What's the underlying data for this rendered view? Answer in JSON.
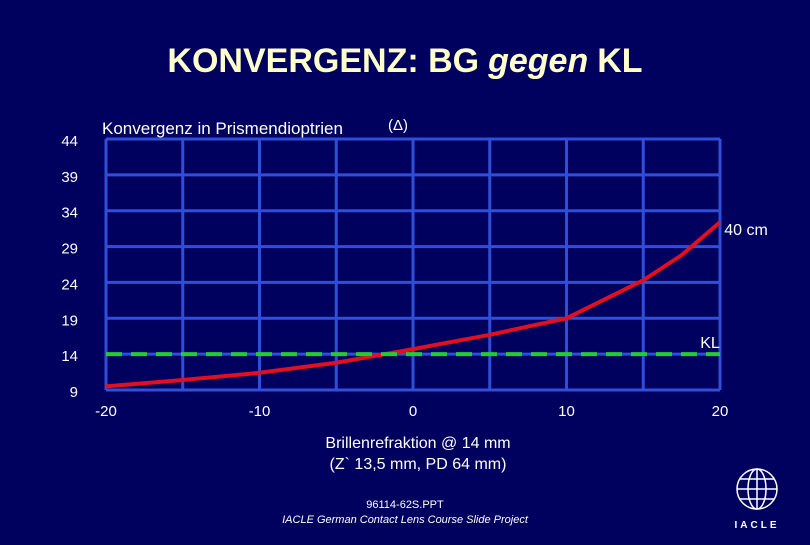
{
  "chart_data": {
    "type": "line",
    "title_start": "KONVERGENZ: BG",
    "title_italic": "gegen",
    "title_end": "KL",
    "ylabel": "Konvergenz in Prismendioptrien",
    "ylabel_unit": "(Δ)",
    "xlabel_line1": "Brillenrefraktion @ 14 mm",
    "xlabel_line2": "(Z` 13,5 mm, PD 64 mm)",
    "xlim": [
      -20,
      20
    ],
    "xticks": [
      -20,
      -10,
      0,
      10,
      20
    ],
    "xminor": [
      -15,
      -5,
      5,
      15
    ],
    "ylim": [
      9,
      44
    ],
    "yticks": [
      9,
      14,
      19,
      24,
      29,
      34,
      39,
      44
    ],
    "grid": true,
    "grid_color": "#2f4fd8",
    "series": [
      {
        "name": "40 cm",
        "color": "#e01020",
        "x": [
          -20,
          -15,
          -10,
          -5,
          0,
          5,
          10,
          15,
          17.5,
          20
        ],
        "values": [
          9.5,
          10.4,
          11.4,
          12.8,
          14.7,
          16.7,
          19.0,
          24.3,
          27.8,
          32.4
        ]
      },
      {
        "name": "KL",
        "color": "#22cc33",
        "dashed": true,
        "x": [
          -20,
          20
        ],
        "values": [
          14,
          14
        ]
      }
    ]
  },
  "footer": {
    "file": "96114-62S.PPT",
    "project": "IACLE German Contact Lens Course Slide Project",
    "logo": "IACLE"
  }
}
